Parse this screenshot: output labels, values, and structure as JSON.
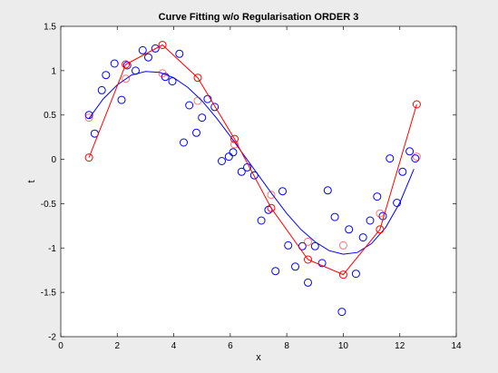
{
  "chart_data": {
    "type": "scatter",
    "title": "Curve Fitting w/o Regularisation ORDER 3",
    "xlabel": "x",
    "ylabel": "t",
    "xlim": [
      0,
      14
    ],
    "ylim": [
      -2,
      1.5
    ],
    "xticks": [
      "0",
      "2",
      "4",
      "6",
      "8",
      "10",
      "12",
      "14"
    ],
    "yticks": [
      "-2",
      "-1.5",
      "-1",
      "-0.5",
      "0",
      "0.5",
      "1",
      "1.5"
    ],
    "grid": false,
    "legend": "none",
    "colors": {
      "observed": "#0000ff",
      "fit": "#0000ff",
      "predicted": "#ff0000"
    },
    "series": [
      {
        "role": "observed",
        "marker": "circle",
        "line": false,
        "x": [
          1.0,
          1.2,
          1.45,
          1.6,
          1.9,
          2.15,
          2.35,
          2.65,
          2.9,
          3.1,
          3.35,
          3.7,
          3.95,
          4.2,
          4.35,
          4.55,
          4.8,
          5.0,
          5.2,
          5.45,
          5.7,
          5.95,
          6.1,
          6.4,
          6.6,
          6.85,
          7.1,
          7.35,
          7.6,
          7.85,
          8.05,
          8.3,
          8.55,
          8.75,
          9.0,
          9.25,
          9.45,
          9.7,
          9.95,
          10.2,
          10.45,
          10.7,
          10.95,
          11.2,
          11.4,
          11.65,
          11.9,
          12.1,
          12.35,
          12.55
        ],
        "y": [
          0.5,
          0.29,
          0.78,
          0.95,
          1.08,
          0.67,
          1.06,
          1.0,
          1.23,
          1.15,
          1.25,
          0.93,
          0.88,
          1.19,
          0.19,
          0.61,
          0.3,
          0.47,
          0.68,
          0.59,
          -0.02,
          0.03,
          0.08,
          -0.14,
          -0.09,
          -0.18,
          -0.69,
          -0.57,
          -1.26,
          -0.36,
          -0.97,
          -1.21,
          -0.98,
          -1.39,
          -0.98,
          -1.17,
          -0.35,
          -0.65,
          -1.72,
          -0.79,
          -1.29,
          -0.88,
          -0.69,
          -0.42,
          -0.64,
          0.01,
          -0.49,
          -0.14,
          0.09,
          0.01
        ]
      },
      {
        "role": "fit",
        "marker": "none",
        "line": true,
        "x": [
          1.0,
          1.5,
          2.0,
          2.5,
          3.0,
          3.5,
          4.0,
          4.5,
          5.0,
          5.5,
          6.0,
          6.5,
          7.0,
          7.5,
          8.0,
          8.5,
          9.0,
          9.5,
          10.0,
          10.5,
          11.0,
          11.5,
          12.0,
          12.5
        ],
        "y": [
          0.46,
          0.68,
          0.84,
          0.95,
          0.99,
          0.98,
          0.92,
          0.81,
          0.66,
          0.47,
          0.26,
          0.04,
          -0.18,
          -0.4,
          -0.61,
          -0.79,
          -0.93,
          -1.03,
          -1.07,
          -1.05,
          -0.95,
          -0.77,
          -0.49,
          -0.11
        ]
      },
      {
        "role": "predicted",
        "marker": "circle",
        "line": true,
        "x": [
          1.0,
          2.3,
          3.6,
          4.85,
          6.15,
          7.45,
          8.75,
          10.0,
          11.3,
          12.6
        ],
        "y": [
          0.02,
          1.07,
          1.29,
          0.92,
          0.23,
          -0.55,
          -1.13,
          -1.3,
          -0.79,
          0.62
        ]
      },
      {
        "role": "predicted-alt",
        "marker": "circle",
        "line": false,
        "x": [
          1.0,
          2.3,
          3.6,
          4.85,
          6.15,
          7.45,
          8.75,
          10.0,
          11.3,
          12.6
        ],
        "y": [
          0.47,
          0.91,
          0.97,
          0.66,
          0.17,
          -0.4,
          -0.93,
          -0.97,
          -0.61,
          0.03
        ]
      }
    ]
  }
}
